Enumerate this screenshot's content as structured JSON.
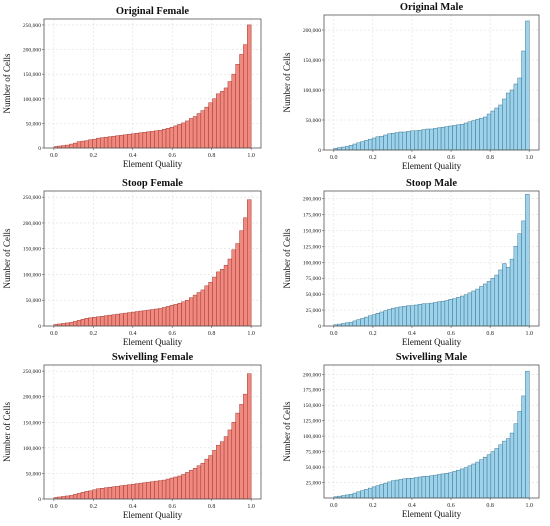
{
  "figure": {
    "title": "Element quality histograms"
  },
  "colors": {
    "female_fill": "#f08a80",
    "female_edge": "#9b2f27",
    "male_fill": "#9ed2ea",
    "male_edge": "#2f6f8e",
    "frame": "#555555",
    "grid": "#dedede"
  },
  "chart_data": [
    {
      "type": "bar",
      "title": "Original Female",
      "xlabel": "Element Quality",
      "ylabel": "Number of Cells",
      "grid": true,
      "xlim": [
        -0.05,
        1.05
      ],
      "ylim": [
        0,
        262000
      ],
      "x_ticks": [
        "0.0",
        "0.2",
        "0.4",
        "0.6",
        "0.8",
        "1.0"
      ],
      "y_ticks": [
        "0",
        "50,000",
        "100,000",
        "150,000",
        "200,000",
        "250,000"
      ],
      "y_tick_values": [
        0,
        50000,
        100000,
        150000,
        200000,
        250000
      ],
      "series": [
        {
          "values": [
            3000,
            4000,
            5000,
            6000,
            8000,
            10000,
            13000,
            14000,
            15000,
            17000,
            18000,
            20000,
            21000,
            22000,
            23000,
            24000,
            25000,
            26000,
            27000,
            28000,
            29000,
            30000,
            31000,
            32000,
            33000,
            34000,
            35000,
            36000,
            38000,
            40000,
            42000,
            45000,
            48000,
            51000,
            55000,
            60000,
            64000,
            70000,
            76000,
            83000,
            92000,
            100000,
            110000,
            115000,
            122000,
            135000,
            150000,
            170000,
            190000,
            210000,
            250000
          ]
        }
      ]
    },
    {
      "type": "bar",
      "title": "Original Male",
      "xlabel": "Element Quality",
      "ylabel": "Number of Cells",
      "grid": true,
      "xlim": [
        -0.05,
        1.05
      ],
      "ylim": [
        0,
        225000
      ],
      "x_ticks": [
        "0.0",
        "0.2",
        "0.4",
        "0.6",
        "0.8",
        "1.0"
      ],
      "y_ticks": [
        "0",
        "50,000",
        "100,000",
        "150,000",
        "200,000"
      ],
      "y_tick_values": [
        0,
        50000,
        100000,
        150000,
        200000
      ],
      "series": [
        {
          "values": [
            3000,
            4000,
            5000,
            6000,
            8000,
            10000,
            12000,
            14000,
            16000,
            18000,
            20000,
            22000,
            23000,
            25000,
            27000,
            28000,
            29000,
            30000,
            30000,
            31000,
            32000,
            32000,
            33000,
            34000,
            35000,
            35000,
            36000,
            37000,
            38000,
            39000,
            40000,
            41000,
            42000,
            43000,
            45000,
            47000,
            49000,
            51000,
            53000,
            55000,
            60000,
            65000,
            70000,
            75000,
            85000,
            95000,
            100000,
            110000,
            120000,
            165000,
            215000
          ]
        }
      ]
    },
    {
      "type": "bar",
      "title": "Stoop Female",
      "xlabel": "Element Quality",
      "ylabel": "Number of Cells",
      "grid": true,
      "xlim": [
        -0.05,
        1.05
      ],
      "ylim": [
        0,
        262000
      ],
      "x_ticks": [
        "0.0",
        "0.2",
        "0.4",
        "0.6",
        "0.8",
        "1.0"
      ],
      "y_ticks": [
        "0",
        "50,000",
        "100,000",
        "150,000",
        "200,000",
        "250,000"
      ],
      "y_tick_values": [
        0,
        50000,
        100000,
        150000,
        200000,
        250000
      ],
      "series": [
        {
          "values": [
            3000,
            4000,
            5000,
            6000,
            7000,
            9000,
            11000,
            13000,
            15000,
            16000,
            17000,
            18000,
            19000,
            20000,
            21000,
            22000,
            23000,
            24000,
            25000,
            26000,
            27000,
            28000,
            29000,
            30000,
            31000,
            32000,
            33000,
            34000,
            36000,
            38000,
            40000,
            42000,
            44000,
            47000,
            50000,
            55000,
            60000,
            65000,
            70000,
            78000,
            85000,
            95000,
            105000,
            110000,
            118000,
            130000,
            148000,
            160000,
            185000,
            210000,
            245000
          ]
        }
      ]
    },
    {
      "type": "bar",
      "title": "Stoop Male",
      "xlabel": "Element Quality",
      "ylabel": "Number of Cells",
      "grid": true,
      "xlim": [
        -0.05,
        1.05
      ],
      "ylim": [
        0,
        212000
      ],
      "x_ticks": [
        "0.0",
        "0.2",
        "0.4",
        "0.6",
        "0.8",
        "1.0"
      ],
      "y_ticks": [
        "0",
        "25,000",
        "50,000",
        "75,000",
        "100,000",
        "125,000",
        "150,000",
        "175,000",
        "200,000"
      ],
      "y_tick_values": [
        0,
        25000,
        50000,
        75000,
        100000,
        125000,
        150000,
        175000,
        200000
      ],
      "series": [
        {
          "values": [
            2000,
            3000,
            4000,
            5000,
            6000,
            8000,
            10000,
            12000,
            14000,
            16000,
            18000,
            20000,
            22000,
            24000,
            26000,
            28000,
            29000,
            30000,
            31000,
            32000,
            32000,
            33000,
            34000,
            35000,
            35000,
            36000,
            37000,
            38000,
            39000,
            40000,
            42000,
            43000,
            45000,
            47000,
            49000,
            52000,
            55000,
            58000,
            62000,
            66000,
            70000,
            75000,
            80000,
            88000,
            98000,
            92000,
            105000,
            125000,
            145000,
            165000,
            207000
          ]
        }
      ]
    },
    {
      "type": "bar",
      "title": "Swivelling Female",
      "xlabel": "Element Quality",
      "ylabel": "Number of Cells",
      "grid": true,
      "xlim": [
        -0.05,
        1.05
      ],
      "ylim": [
        0,
        262000
      ],
      "x_ticks": [
        "0.0",
        "0.2",
        "0.4",
        "0.6",
        "0.8",
        "1.0"
      ],
      "y_ticks": [
        "0",
        "50,000",
        "100,000",
        "150,000",
        "200,000",
        "250,000"
      ],
      "y_tick_values": [
        0,
        50000,
        100000,
        150000,
        200000,
        250000
      ],
      "series": [
        {
          "values": [
            3000,
            4000,
            5000,
            6000,
            7000,
            9000,
            11000,
            13000,
            15000,
            16000,
            18000,
            20000,
            21000,
            22000,
            23000,
            24000,
            25000,
            26000,
            27000,
            28000,
            29000,
            30000,
            31000,
            32000,
            33000,
            34000,
            35000,
            36000,
            37000,
            39000,
            41000,
            43000,
            45000,
            48000,
            52000,
            56000,
            60000,
            65000,
            70000,
            78000,
            85000,
            95000,
            105000,
            112000,
            122000,
            135000,
            150000,
            168000,
            185000,
            205000,
            245000
          ]
        }
      ]
    },
    {
      "type": "bar",
      "title": "Swivelling Male",
      "xlabel": "Element Quality",
      "ylabel": "Number of Cells",
      "grid": true,
      "xlim": [
        -0.05,
        1.05
      ],
      "ylim": [
        0,
        215000
      ],
      "x_ticks": [
        "0.0",
        "0.2",
        "0.4",
        "0.6",
        "0.8",
        "1.0"
      ],
      "y_ticks": [
        "25,000",
        "50,000",
        "75,000",
        "100,000",
        "125,000",
        "150,000",
        "175,000",
        "200,000"
      ],
      "y_tick_values": [
        25000,
        50000,
        75000,
        100000,
        125000,
        150000,
        175000,
        200000
      ],
      "series": [
        {
          "values": [
            2000,
            3000,
            4000,
            5000,
            6000,
            8000,
            10000,
            12000,
            14000,
            16000,
            18000,
            20000,
            22000,
            24000,
            26000,
            28000,
            29000,
            30000,
            31000,
            32000,
            32000,
            33000,
            34000,
            35000,
            35000,
            36000,
            37000,
            38000,
            39000,
            40000,
            41000,
            43000,
            45000,
            47000,
            49000,
            52000,
            55000,
            58000,
            62000,
            66000,
            70000,
            75000,
            80000,
            86000,
            92000,
            96000,
            105000,
            120000,
            140000,
            165000,
            205000
          ]
        }
      ]
    }
  ]
}
